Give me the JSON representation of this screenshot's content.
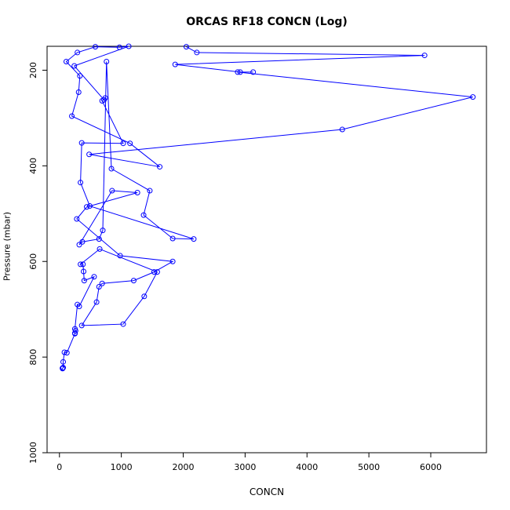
{
  "chart_data": {
    "type": "line",
    "title": "ORCAS RF18 CONCN (Log)",
    "xlabel": "CONCN",
    "ylabel": "Pressure (mbar)",
    "xlim": [
      -200,
      6900
    ],
    "ylim": [
      1000,
      150
    ],
    "y_inverted": true,
    "x_ticks": [
      0,
      1000,
      2000,
      3000,
      4000,
      5000,
      6000
    ],
    "y_ticks": [
      200,
      400,
      600,
      800,
      1000
    ],
    "color": "#0000ff",
    "marker": "open-circle",
    "series": [
      {
        "points": [
          [
            2050,
            151
          ],
          [
            2220,
            163
          ],
          [
            5900,
            169
          ],
          [
            1870,
            188
          ],
          [
            2920,
            204
          ],
          [
            3130,
            204
          ],
          [
            2880,
            204
          ],
          [
            6680,
            256
          ],
          [
            4570,
            324
          ],
          [
            480,
            376
          ],
          [
            1620,
            402
          ],
          [
            1140,
            353
          ],
          [
            200,
            296
          ],
          [
            310,
            246
          ],
          [
            330,
            212
          ],
          [
            110,
            182
          ],
          [
            290,
            163
          ],
          [
            580,
            151
          ],
          [
            970,
            152
          ],
          [
            1120,
            150
          ],
          [
            240,
            191
          ],
          [
            720,
            262
          ],
          [
            740,
            258
          ],
          [
            690,
            264
          ],
          [
            1030,
            353
          ],
          [
            360,
            352
          ],
          [
            340,
            435
          ],
          [
            490,
            484
          ],
          [
            2170,
            553
          ],
          [
            1830,
            552
          ],
          [
            1360,
            503
          ],
          [
            1460,
            452
          ],
          [
            840,
            406
          ],
          [
            760,
            182
          ],
          [
            700,
            535
          ],
          [
            640,
            553
          ],
          [
            370,
            559
          ],
          [
            320,
            565
          ],
          [
            850,
            452
          ],
          [
            1260,
            456
          ],
          [
            440,
            486
          ],
          [
            280,
            511
          ],
          [
            980,
            588
          ],
          [
            1830,
            600
          ],
          [
            1530,
            622
          ],
          [
            1200,
            640
          ],
          [
            690,
            646
          ],
          [
            640,
            653
          ],
          [
            600,
            685
          ],
          [
            360,
            734
          ],
          [
            1030,
            731
          ],
          [
            1370,
            673
          ],
          [
            1580,
            622
          ],
          [
            650,
            574
          ],
          [
            340,
            606
          ],
          [
            380,
            606
          ],
          [
            390,
            621
          ],
          [
            400,
            640
          ],
          [
            560,
            632
          ],
          [
            320,
            694
          ],
          [
            290,
            690
          ],
          [
            250,
            741
          ],
          [
            260,
            745
          ],
          [
            250,
            750
          ],
          [
            250,
            751
          ],
          [
            120,
            791
          ],
          [
            80,
            790
          ],
          [
            60,
            810
          ],
          [
            60,
            822
          ],
          [
            50,
            824
          ],
          [
            50,
            823
          ]
        ]
      }
    ]
  }
}
